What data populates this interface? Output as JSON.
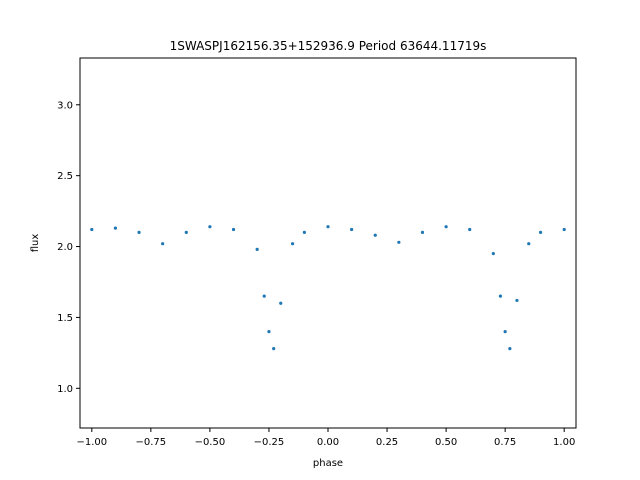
{
  "chart_data": {
    "type": "scatter",
    "title": "1SWASPJ162156.35+152936.9 Period 63644.11719s",
    "xlabel": "phase",
    "ylabel": "flux",
    "xlim": [
      -1.05,
      1.05
    ],
    "ylim": [
      0.72,
      3.33
    ],
    "xticks": [
      -1.0,
      -0.75,
      -0.5,
      -0.25,
      0.0,
      0.25,
      0.5,
      0.75,
      1.0
    ],
    "xtick_labels": [
      "−1.00",
      "−0.75",
      "−0.50",
      "−0.25",
      "0.00",
      "0.25",
      "0.50",
      "0.75",
      "1.00"
    ],
    "yticks": [
      1.0,
      1.5,
      2.0,
      2.5,
      3.0
    ],
    "ytick_labels": [
      "1.0",
      "1.5",
      "2.0",
      "2.5",
      "3.0"
    ],
    "grid": false,
    "color": "#1f77b4",
    "series": [
      {
        "x": [
          -1.0,
          -0.9,
          -0.8,
          -0.7,
          -0.6,
          -0.5,
          -0.4,
          -0.3,
          -0.27,
          -0.25,
          -0.23,
          -0.2,
          -0.15,
          -0.1,
          0.0,
          0.1,
          0.2,
          0.3,
          0.4,
          0.5,
          0.6,
          0.7,
          0.73,
          0.75,
          0.77,
          0.8,
          0.85,
          0.9,
          1.0
        ],
        "y": [
          2.12,
          2.13,
          2.1,
          2.02,
          2.1,
          2.14,
          2.12,
          1.98,
          1.65,
          1.4,
          1.28,
          1.6,
          2.02,
          2.1,
          2.14,
          2.12,
          2.08,
          2.03,
          2.1,
          2.14,
          2.12,
          1.95,
          1.65,
          1.4,
          1.28,
          1.62,
          2.02,
          2.1,
          2.12
        ]
      }
    ]
  }
}
